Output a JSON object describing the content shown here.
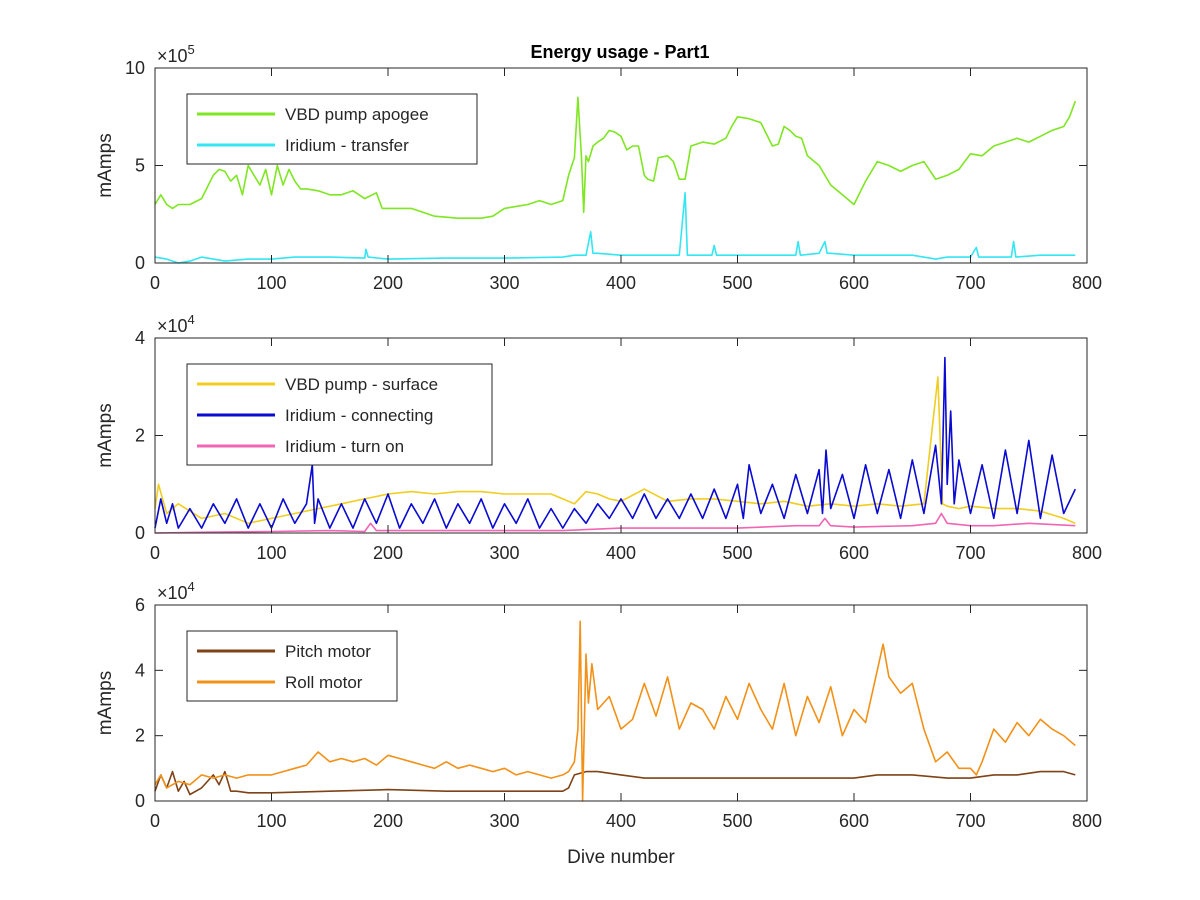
{
  "figure": {
    "title": "Energy usage - Part1"
  },
  "chart_data": [
    {
      "type": "line",
      "title": "Energy usage - Part1",
      "xlabel": "",
      "ylabel": "mAmps",
      "xlim": [
        0,
        800
      ],
      "ylim": [
        0,
        1000000
      ],
      "exponent_label": "×10",
      "exponent_value": "5",
      "xticks": [
        0,
        100,
        200,
        300,
        400,
        500,
        600,
        700,
        800
      ],
      "yticks": [
        0,
        500000,
        1000000
      ],
      "ytick_labels": [
        "0",
        "5",
        "10"
      ],
      "legend_position": "top-left",
      "series": [
        {
          "name": "VBD pump apogee",
          "color": "#7fe622",
          "x": [
            0,
            5,
            10,
            15,
            20,
            30,
            40,
            50,
            55,
            60,
            65,
            70,
            75,
            80,
            85,
            90,
            95,
            100,
            105,
            110,
            115,
            120,
            125,
            130,
            140,
            150,
            160,
            170,
            180,
            190,
            195,
            200,
            220,
            240,
            260,
            280,
            290,
            300,
            310,
            320,
            330,
            340,
            350,
            355,
            360,
            363,
            366,
            368,
            370,
            372,
            376,
            380,
            385,
            390,
            395,
            400,
            405,
            410,
            415,
            420,
            423,
            428,
            432,
            440,
            445,
            450,
            455,
            460,
            470,
            480,
            490,
            495,
            500,
            510,
            520,
            530,
            535,
            540,
            545,
            550,
            555,
            560,
            570,
            580,
            590,
            600,
            605,
            610,
            620,
            630,
            640,
            650,
            660,
            670,
            680,
            690,
            700,
            710,
            720,
            730,
            740,
            750,
            760,
            770,
            780,
            785,
            790
          ],
          "values": [
            300000,
            350000,
            300000,
            280000,
            300000,
            300000,
            330000,
            450000,
            480000,
            470000,
            420000,
            450000,
            350000,
            500000,
            450000,
            400000,
            480000,
            350000,
            500000,
            400000,
            480000,
            420000,
            380000,
            380000,
            370000,
            350000,
            350000,
            370000,
            330000,
            360000,
            280000,
            280000,
            280000,
            240000,
            230000,
            230000,
            240000,
            280000,
            290000,
            300000,
            320000,
            300000,
            320000,
            450000,
            540000,
            850000,
            550000,
            260000,
            550000,
            520000,
            600000,
            620000,
            640000,
            680000,
            670000,
            650000,
            580000,
            600000,
            600000,
            450000,
            430000,
            420000,
            540000,
            550000,
            520000,
            430000,
            430000,
            600000,
            620000,
            610000,
            640000,
            700000,
            750000,
            740000,
            720000,
            600000,
            610000,
            700000,
            680000,
            650000,
            640000,
            550000,
            500000,
            400000,
            350000,
            300000,
            360000,
            420000,
            520000,
            500000,
            470000,
            500000,
            520000,
            430000,
            450000,
            480000,
            560000,
            550000,
            600000,
            620000,
            640000,
            620000,
            650000,
            680000,
            700000,
            750000,
            830000
          ]
        },
        {
          "name": "Iridium - transfer",
          "color": "#33e6f2",
          "x": [
            0,
            10,
            20,
            30,
            40,
            50,
            60,
            80,
            100,
            120,
            150,
            180,
            181,
            183,
            200,
            250,
            300,
            350,
            360,
            370,
            374,
            376,
            380,
            400,
            450,
            455,
            457,
            460,
            478,
            480,
            482,
            500,
            550,
            552,
            554,
            570,
            575,
            577,
            580,
            600,
            650,
            670,
            680,
            700,
            705,
            707,
            710,
            735,
            737,
            739,
            760,
            790
          ],
          "values": [
            30000,
            20000,
            0,
            10000,
            30000,
            20000,
            10000,
            20000,
            20000,
            30000,
            30000,
            25000,
            70000,
            30000,
            20000,
            25000,
            25000,
            30000,
            40000,
            40000,
            160000,
            50000,
            50000,
            40000,
            40000,
            360000,
            40000,
            40000,
            40000,
            90000,
            40000,
            40000,
            40000,
            110000,
            40000,
            50000,
            110000,
            50000,
            50000,
            40000,
            40000,
            20000,
            30000,
            30000,
            80000,
            30000,
            30000,
            30000,
            110000,
            30000,
            40000,
            40000
          ]
        }
      ]
    },
    {
      "type": "line",
      "title": "",
      "xlabel": "",
      "ylabel": "mAmps",
      "xlim": [
        0,
        800
      ],
      "ylim": [
        0,
        40000
      ],
      "exponent_label": "×10",
      "exponent_value": "4",
      "xticks": [
        0,
        100,
        200,
        300,
        400,
        500,
        600,
        700,
        800
      ],
      "yticks": [
        0,
        20000,
        40000
      ],
      "ytick_labels": [
        "0",
        "2",
        "4"
      ],
      "legend_position": "top-left",
      "series": [
        {
          "name": "VBD pump - surface",
          "color": "#f0cd1e",
          "x": [
            0,
            3,
            10,
            20,
            40,
            60,
            80,
            100,
            120,
            140,
            160,
            180,
            200,
            220,
            240,
            260,
            280,
            300,
            320,
            340,
            350,
            360,
            370,
            380,
            390,
            400,
            420,
            440,
            460,
            480,
            500,
            520,
            540,
            560,
            580,
            600,
            620,
            640,
            660,
            672,
            676,
            680,
            690,
            700,
            720,
            740,
            760,
            780,
            790
          ],
          "values": [
            5000,
            10000,
            4000,
            6000,
            3000,
            4000,
            2000,
            3000,
            4000,
            5000,
            6000,
            7000,
            8000,
            8500,
            8000,
            8500,
            8500,
            8000,
            8000,
            8000,
            7000,
            6000,
            8500,
            8000,
            7000,
            6500,
            9000,
            6500,
            7000,
            7000,
            6500,
            6000,
            6500,
            5500,
            6000,
            5500,
            6000,
            5500,
            6000,
            32000,
            6000,
            5500,
            5000,
            5500,
            5000,
            5000,
            4500,
            3000,
            2000
          ]
        },
        {
          "name": "Iridium - connecting",
          "color": "#0a0ad2",
          "x": [
            0,
            5,
            10,
            15,
            20,
            30,
            40,
            50,
            60,
            70,
            80,
            90,
            100,
            110,
            120,
            130,
            135,
            137,
            140,
            150,
            160,
            170,
            180,
            190,
            200,
            210,
            220,
            230,
            240,
            250,
            260,
            270,
            280,
            290,
            300,
            310,
            320,
            330,
            340,
            350,
            360,
            370,
            380,
            390,
            400,
            410,
            420,
            430,
            440,
            450,
            460,
            470,
            480,
            490,
            500,
            505,
            510,
            520,
            530,
            540,
            550,
            560,
            570,
            573,
            576,
            580,
            590,
            600,
            610,
            620,
            630,
            640,
            650,
            660,
            670,
            675,
            678,
            680,
            683,
            686,
            690,
            700,
            710,
            720,
            730,
            740,
            750,
            760,
            770,
            780,
            790
          ],
          "values": [
            1000,
            7000,
            2000,
            6000,
            1000,
            5000,
            1000,
            6000,
            2000,
            7000,
            1000,
            6000,
            1000,
            7000,
            2000,
            6000,
            14000,
            2000,
            7000,
            1000,
            6000,
            1000,
            7000,
            2000,
            8000,
            1000,
            6000,
            2000,
            7000,
            1000,
            6000,
            2000,
            7000,
            1000,
            6000,
            2000,
            7000,
            1000,
            5000,
            1000,
            5000,
            2000,
            6000,
            3000,
            7000,
            3000,
            8000,
            3000,
            7000,
            3000,
            8000,
            3000,
            9000,
            3000,
            10000,
            3000,
            14000,
            4000,
            10000,
            3000,
            12000,
            4000,
            13000,
            4000,
            17000,
            5000,
            12000,
            3000,
            14000,
            4000,
            13000,
            3000,
            15000,
            4000,
            18000,
            6000,
            36000,
            10000,
            25000,
            6000,
            15000,
            4000,
            14000,
            3000,
            17000,
            4000,
            19000,
            3000,
            16000,
            4000,
            9000
          ]
        },
        {
          "name": "Iridium - turn on",
          "color": "#f066b4",
          "x": [
            0,
            50,
            100,
            150,
            180,
            185,
            190,
            250,
            300,
            350,
            400,
            450,
            500,
            550,
            570,
            575,
            580,
            600,
            650,
            670,
            675,
            680,
            700,
            720,
            750,
            790
          ],
          "values": [
            0,
            200,
            300,
            500,
            300,
            2000,
            500,
            500,
            500,
            500,
            1000,
            1000,
            1000,
            1500,
            1500,
            3000,
            1500,
            1200,
            1500,
            2000,
            4000,
            2000,
            1500,
            1500,
            2000,
            1500
          ]
        }
      ]
    },
    {
      "type": "line",
      "title": "",
      "xlabel": "Dive number",
      "ylabel": "mAmps",
      "xlim": [
        0,
        800
      ],
      "ylim": [
        0,
        60000
      ],
      "exponent_label": "×10",
      "exponent_value": "4",
      "xticks": [
        0,
        100,
        200,
        300,
        400,
        500,
        600,
        700,
        800
      ],
      "yticks": [
        0,
        20000,
        40000,
        60000
      ],
      "ytick_labels": [
        "0",
        "2",
        "4",
        "6"
      ],
      "legend_position": "top-left",
      "series": [
        {
          "name": "Pitch motor",
          "color": "#7f4317",
          "x": [
            0,
            5,
            10,
            15,
            20,
            25,
            30,
            40,
            50,
            55,
            60,
            65,
            70,
            80,
            100,
            150,
            200,
            250,
            300,
            350,
            355,
            360,
            370,
            380,
            400,
            420,
            450,
            500,
            550,
            600,
            620,
            650,
            680,
            700,
            720,
            740,
            760,
            780,
            790
          ],
          "values": [
            3000,
            8000,
            4000,
            9000,
            3000,
            6000,
            2000,
            4000,
            8000,
            5000,
            9000,
            3000,
            3000,
            2500,
            2500,
            3000,
            3500,
            3000,
            3000,
            3000,
            4000,
            8000,
            9000,
            9000,
            8000,
            7000,
            7000,
            7000,
            7000,
            7000,
            8000,
            8000,
            7000,
            7000,
            8000,
            8000,
            9000,
            9000,
            8000
          ]
        },
        {
          "name": "Roll motor",
          "color": "#f29118",
          "x": [
            0,
            5,
            10,
            20,
            30,
            40,
            50,
            60,
            70,
            80,
            90,
            100,
            110,
            120,
            130,
            140,
            150,
            160,
            170,
            180,
            190,
            200,
            210,
            220,
            230,
            240,
            250,
            260,
            270,
            280,
            290,
            300,
            310,
            320,
            330,
            340,
            350,
            355,
            360,
            363,
            365,
            367,
            370,
            372,
            375,
            380,
            390,
            400,
            410,
            420,
            430,
            440,
            450,
            460,
            470,
            480,
            490,
            500,
            510,
            520,
            530,
            540,
            550,
            560,
            570,
            580,
            590,
            600,
            610,
            620,
            625,
            630,
            640,
            650,
            660,
            670,
            680,
            690,
            700,
            705,
            710,
            720,
            730,
            740,
            750,
            760,
            770,
            780,
            790
          ],
          "values": [
            5000,
            8000,
            4000,
            6000,
            5000,
            8000,
            7000,
            8000,
            7000,
            8000,
            8000,
            8000,
            9000,
            10000,
            11000,
            15000,
            12000,
            13000,
            12000,
            13000,
            11000,
            14000,
            13000,
            12000,
            11000,
            10000,
            12000,
            10000,
            11000,
            10000,
            9000,
            10000,
            8000,
            9000,
            8000,
            7000,
            8000,
            9000,
            12000,
            22000,
            55000,
            0,
            45000,
            30000,
            42000,
            28000,
            32000,
            22000,
            25000,
            36000,
            26000,
            38000,
            22000,
            30000,
            28000,
            22000,
            32000,
            25000,
            36000,
            28000,
            22000,
            36000,
            20000,
            32000,
            24000,
            35000,
            20000,
            28000,
            24000,
            40000,
            48000,
            38000,
            33000,
            36000,
            22000,
            12000,
            15000,
            10000,
            10000,
            8000,
            12000,
            22000,
            18000,
            24000,
            20000,
            25000,
            22000,
            20000,
            17000
          ]
        }
      ]
    }
  ]
}
